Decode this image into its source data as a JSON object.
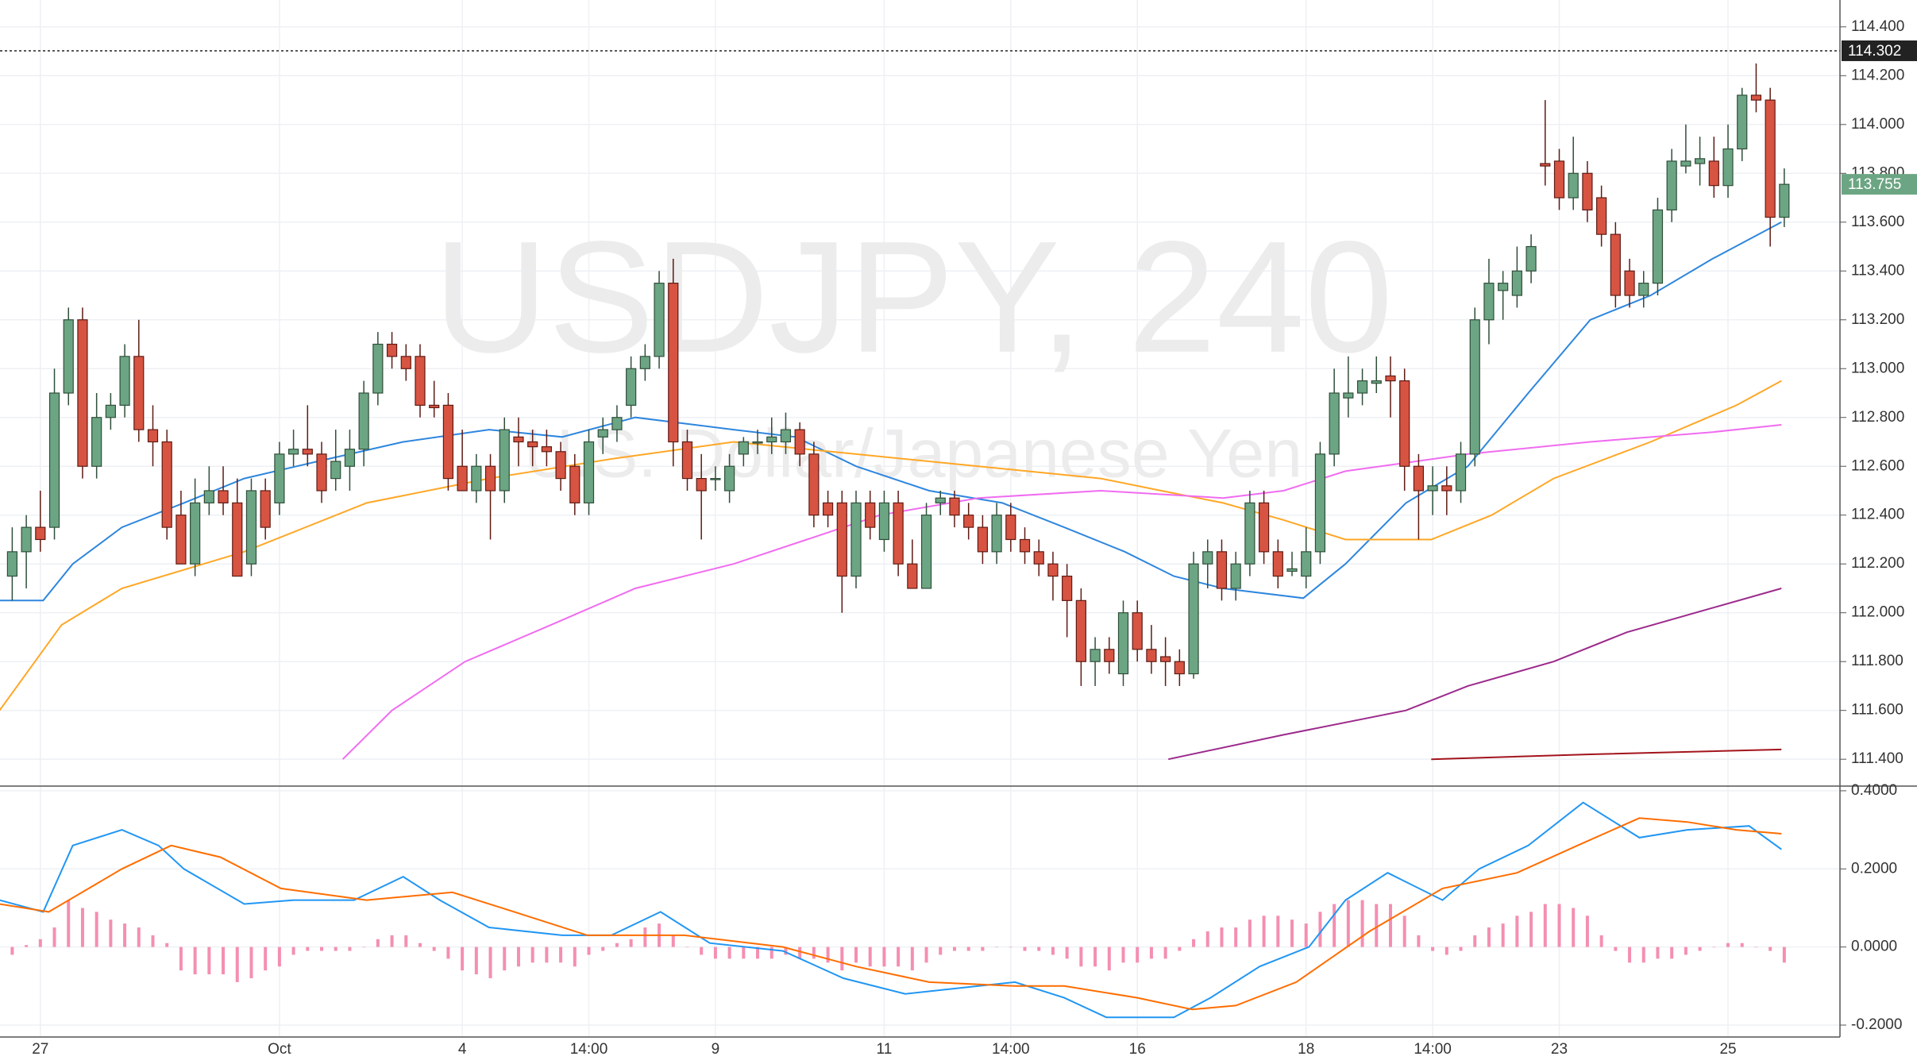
{
  "chart_data": [
    {
      "type": "candlestick",
      "title": "USDJPY, 240",
      "subtitle": "U.S. Dollar/Japanese Yen",
      "categories": [
        null,
        null,
        "27",
        null,
        null,
        null,
        null,
        null,
        null,
        null,
        null,
        null,
        null,
        null,
        null,
        null,
        null,
        null,
        null,
        "Oct",
        null,
        null,
        null,
        null,
        null,
        null,
        null,
        null,
        null,
        null,
        null,
        null,
        "4",
        null,
        null,
        null,
        null,
        null,
        null,
        null,
        null,
        "14:00",
        null,
        null,
        null,
        null,
        null,
        null,
        null,
        null,
        "9",
        null,
        null,
        null,
        null,
        null,
        null,
        null,
        null,
        null,
        null,
        null,
        "11",
        null,
        null,
        null,
        null,
        null,
        null,
        null,
        null,
        "14:00",
        null,
        null,
        null,
        null,
        null,
        null,
        null,
        null,
        "16",
        null,
        null,
        null,
        null,
        null,
        null,
        null,
        null,
        null,
        null,
        null,
        "18",
        null,
        null,
        null,
        null,
        null,
        null,
        null,
        null,
        "14:00",
        null,
        null,
        null,
        null,
        null,
        null,
        null,
        null,
        "23",
        null,
        null,
        null,
        null,
        null,
        null,
        null,
        null,
        null,
        null,
        null,
        "25",
        null,
        null,
        null,
        null
      ],
      "open": [
        112.15,
        112.25,
        112.35,
        112.35,
        112.9,
        113.2,
        112.6,
        112.8,
        112.85,
        113.05,
        112.75,
        112.7,
        112.4,
        112.2,
        112.45,
        112.5,
        112.45,
        112.2,
        112.5,
        112.45,
        112.65,
        112.67,
        112.65,
        112.55,
        112.6,
        112.67,
        112.9,
        113.1,
        113.05,
        113.05,
        112.85,
        112.85,
        112.6,
        112.5,
        112.6,
        112.5,
        112.72,
        112.7,
        112.68,
        112.66,
        112.6,
        112.45,
        112.72,
        112.75,
        112.85,
        113.0,
        113.05,
        113.35,
        112.7,
        112.55,
        112.55,
        112.5,
        112.65,
        112.7,
        112.7,
        112.7,
        112.75,
        112.65,
        112.45,
        112.45,
        112.15,
        112.45,
        112.3,
        112.45,
        112.2,
        112.1,
        112.45,
        112.47,
        112.4,
        112.35,
        112.25,
        112.4,
        112.3,
        112.25,
        112.2,
        112.15,
        112.05,
        111.8,
        111.85,
        111.75,
        112.0,
        111.85,
        111.82,
        111.8,
        111.75,
        112.2,
        112.25,
        112.1,
        112.2,
        112.45,
        112.25,
        112.17,
        112.15,
        112.25,
        112.65,
        112.88,
        112.9,
        112.94,
        112.97,
        112.95,
        112.6,
        112.5,
        112.52,
        112.5,
        112.65,
        113.2,
        113.32,
        113.3,
        113.4,
        113.84,
        113.85,
        113.7,
        113.8,
        113.7,
        113.55,
        113.4,
        113.3,
        113.35,
        113.65,
        113.83,
        113.84,
        113.85,
        113.75,
        113.9,
        114.12,
        114.1,
        113.62
      ],
      "high": [
        112.35,
        112.4,
        112.5,
        113.0,
        113.25,
        113.25,
        112.9,
        112.9,
        113.1,
        113.2,
        112.85,
        112.75,
        112.5,
        112.55,
        112.6,
        112.6,
        112.55,
        112.55,
        112.55,
        112.7,
        112.75,
        112.85,
        112.7,
        112.75,
        112.75,
        112.95,
        113.15,
        113.15,
        113.1,
        113.1,
        112.95,
        112.9,
        112.75,
        112.65,
        112.65,
        112.8,
        112.8,
        112.75,
        112.75,
        112.7,
        112.65,
        112.75,
        112.8,
        112.85,
        113.05,
        113.1,
        113.4,
        113.45,
        112.75,
        112.65,
        112.6,
        112.65,
        112.72,
        112.75,
        112.8,
        112.82,
        112.78,
        112.7,
        112.5,
        112.5,
        112.5,
        112.5,
        112.5,
        112.5,
        112.3,
        112.45,
        112.5,
        112.5,
        112.45,
        112.4,
        112.45,
        112.45,
        112.35,
        112.3,
        112.25,
        112.2,
        112.1,
        111.9,
        111.9,
        112.05,
        112.05,
        111.95,
        111.9,
        111.85,
        112.25,
        112.3,
        112.3,
        112.25,
        112.5,
        112.5,
        112.3,
        112.25,
        112.35,
        112.7,
        113.0,
        113.05,
        113.0,
        113.05,
        113.05,
        113.0,
        112.65,
        112.6,
        112.6,
        112.7,
        113.25,
        113.45,
        113.4,
        113.5,
        113.55,
        114.1,
        113.9,
        113.95,
        113.85,
        113.75,
        113.6,
        113.45,
        113.4,
        113.7,
        113.9,
        114.0,
        113.95,
        113.95,
        114.0,
        114.15,
        114.25,
        114.15,
        113.82
      ],
      "low": [
        112.05,
        112.1,
        112.25,
        112.3,
        112.85,
        112.55,
        112.55,
        112.75,
        112.8,
        112.7,
        112.6,
        112.3,
        112.2,
        112.15,
        112.4,
        112.4,
        112.15,
        112.15,
        112.3,
        112.4,
        112.6,
        112.6,
        112.45,
        112.5,
        112.5,
        112.6,
        112.85,
        113.0,
        112.95,
        112.8,
        112.8,
        112.5,
        112.5,
        112.45,
        112.3,
        112.45,
        112.6,
        112.6,
        112.6,
        112.5,
        112.4,
        112.4,
        112.65,
        112.7,
        112.8,
        112.95,
        113.0,
        112.6,
        112.5,
        112.3,
        112.5,
        112.45,
        112.6,
        112.65,
        112.65,
        112.65,
        112.6,
        112.35,
        112.35,
        112.0,
        112.1,
        112.3,
        112.25,
        112.15,
        112.1,
        112.1,
        112.4,
        112.35,
        112.3,
        112.2,
        112.2,
        112.25,
        112.2,
        112.15,
        112.05,
        111.9,
        111.7,
        111.7,
        111.75,
        111.7,
        111.8,
        111.75,
        111.7,
        111.7,
        111.73,
        112.1,
        112.05,
        112.05,
        112.15,
        112.2,
        112.1,
        112.15,
        112.1,
        112.2,
        112.6,
        112.8,
        112.85,
        112.9,
        112.8,
        112.5,
        112.3,
        112.4,
        112.4,
        112.45,
        112.6,
        113.1,
        113.2,
        113.25,
        113.35,
        113.75,
        113.65,
        113.65,
        113.6,
        113.5,
        113.25,
        113.25,
        113.25,
        113.3,
        113.6,
        113.8,
        113.75,
        113.7,
        113.7,
        113.85,
        114.05,
        113.5,
        113.58
      ],
      "close": [
        112.25,
        112.35,
        112.3,
        112.9,
        113.2,
        112.6,
        112.8,
        112.85,
        113.05,
        112.75,
        112.7,
        112.35,
        112.2,
        112.45,
        112.5,
        112.45,
        112.15,
        112.5,
        112.35,
        112.65,
        112.67,
        112.65,
        112.5,
        112.62,
        112.67,
        112.9,
        113.1,
        113.05,
        113.0,
        112.85,
        112.84,
        112.55,
        112.5,
        112.6,
        112.5,
        112.75,
        112.7,
        112.68,
        112.66,
        112.55,
        112.45,
        112.7,
        112.75,
        112.8,
        113.0,
        113.05,
        113.35,
        112.7,
        112.55,
        112.5,
        112.55,
        112.6,
        112.7,
        112.7,
        112.72,
        112.75,
        112.65,
        112.4,
        112.4,
        112.15,
        112.45,
        112.35,
        112.45,
        112.2,
        112.1,
        112.4,
        112.47,
        112.4,
        112.35,
        112.25,
        112.4,
        112.3,
        112.25,
        112.2,
        112.15,
        112.05,
        111.8,
        111.85,
        111.8,
        112.0,
        111.85,
        111.8,
        111.8,
        111.75,
        112.2,
        112.25,
        112.1,
        112.2,
        112.45,
        112.25,
        112.15,
        112.18,
        112.25,
        112.65,
        112.9,
        112.9,
        112.95,
        112.95,
        112.95,
        112.6,
        112.5,
        112.52,
        112.5,
        112.65,
        113.2,
        113.35,
        113.35,
        113.4,
        113.5,
        113.83,
        113.7,
        113.8,
        113.65,
        113.55,
        113.3,
        113.3,
        113.35,
        113.65,
        113.85,
        113.85,
        113.86,
        113.75,
        113.9,
        114.12,
        114.1,
        113.62,
        113.755
      ],
      "up_color": "#6ca583",
      "down_color": "#d75442",
      "lines": [
        {
          "color": "#2e86de",
          "x": [
            -0.9,
            2.2,
            4.3,
            7.8,
            12.2,
            16.5,
            21.7,
            27.8,
            33.9,
            39.1,
            44.3,
            51.3,
            55.7,
            60,
            65.2,
            70.4,
            74.8,
            79.1,
            82.6,
            86.1,
            91.8,
            94.8,
            99.1,
            103.5,
            107.8,
            112.2,
            116.5,
            120.9,
            125.8
          ],
          "values": [
            112.05,
            112.05,
            112.2,
            112.35,
            112.45,
            112.55,
            112.62,
            112.7,
            112.75,
            112.72,
            112.8,
            112.75,
            112.72,
            112.6,
            112.5,
            112.45,
            112.35,
            112.25,
            112.15,
            112.1,
            112.06,
            112.2,
            112.45,
            112.6,
            112.9,
            113.2,
            113.3,
            113.45,
            113.6
          ]
        },
        {
          "color": "#ffa726",
          "x": [
            -0.9,
            3.5,
            7.8,
            16.5,
            25.2,
            33.9,
            42.6,
            51.3,
            60,
            68.7,
            77.4,
            81.7,
            86.1,
            90.4,
            94.8,
            100.9,
            105.2,
            109.6,
            116.5,
            122.6,
            125.8
          ],
          "values": [
            111.6,
            111.95,
            112.1,
            112.25,
            112.45,
            112.55,
            112.63,
            112.7,
            112.65,
            112.6,
            112.55,
            112.5,
            112.45,
            112.38,
            112.3,
            112.3,
            112.4,
            112.55,
            112.7,
            112.85,
            112.95
          ]
        },
        {
          "color": "#f06cf0",
          "x": [
            23.5,
            27,
            32.2,
            38.3,
            44.3,
            51.3,
            56.5,
            61.7,
            68.7,
            77.4,
            86.1,
            90.4,
            94.8,
            103.5,
            112.2,
            120.9,
            125.8
          ],
          "values": [
            111.4,
            111.6,
            111.8,
            111.95,
            112.1,
            112.2,
            112.3,
            112.4,
            112.47,
            112.5,
            112.47,
            112.5,
            112.58,
            112.65,
            112.7,
            112.74,
            112.77
          ]
        },
        {
          "color": "#9c2a8c",
          "x": [
            82.2,
            90.4,
            99.1,
            103.5,
            109.6,
            114.8,
            120.9,
            125.8
          ],
          "values": [
            111.4,
            111.5,
            111.6,
            111.7,
            111.8,
            111.92,
            112.02,
            112.1
          ]
        },
        {
          "color": "#a3141c",
          "x": [
            100.9,
            112.2,
            125.8
          ],
          "values": [
            111.4,
            111.42,
            111.44
          ]
        }
      ],
      "price_lines": [
        {
          "value": 114.302,
          "color": "#222222"
        },
        {
          "value": 113.755,
          "color": "#6ca583"
        }
      ],
      "ylim": [
        111.29,
        114.51
      ],
      "yticks": [
        {
          "value": 111.4,
          "label": "111.400"
        },
        {
          "value": 111.6,
          "label": "111.600"
        },
        {
          "value": 111.8,
          "label": "111.800"
        },
        {
          "value": 112.0,
          "label": "112.000"
        },
        {
          "value": 112.2,
          "label": "112.200"
        },
        {
          "value": 112.4,
          "label": "112.400"
        },
        {
          "value": 112.6,
          "label": "112.600"
        },
        {
          "value": 112.8,
          "label": "112.800"
        },
        {
          "value": 113.0,
          "label": "113.000"
        },
        {
          "value": 113.2,
          "label": "113.200"
        },
        {
          "value": 113.4,
          "label": "113.400"
        },
        {
          "value": 113.6,
          "label": "113.600"
        },
        {
          "value": 113.8,
          "label": "113.800"
        },
        {
          "value": 114.0,
          "label": "114.000"
        },
        {
          "value": 114.2,
          "label": "114.200"
        },
        {
          "value": 114.4,
          "label": "114.400"
        }
      ],
      "grid": true
    },
    {
      "type": "macd",
      "histogram": [
        -0.02,
        0.005,
        0.02,
        0.05,
        0.12,
        0.1,
        0.09,
        0.07,
        0.06,
        0.05,
        0.03,
        0.01,
        -0.06,
        -0.07,
        -0.07,
        -0.07,
        -0.09,
        -0.08,
        -0.06,
        -0.05,
        -0.02,
        -0.01,
        -0.01,
        -0.01,
        -0.01,
        0.0,
        0.02,
        0.03,
        0.03,
        0.01,
        -0.01,
        -0.03,
        -0.06,
        -0.07,
        -0.08,
        -0.06,
        -0.05,
        -0.04,
        -0.04,
        -0.04,
        -0.05,
        -0.02,
        -0.01,
        0.01,
        0.02,
        0.05,
        0.06,
        0.03,
        0.0,
        -0.02,
        -0.03,
        -0.03,
        -0.03,
        -0.03,
        -0.03,
        -0.02,
        -0.03,
        -0.03,
        -0.04,
        -0.06,
        -0.04,
        -0.05,
        -0.05,
        -0.05,
        -0.06,
        -0.04,
        -0.02,
        -0.01,
        -0.01,
        -0.01,
        0.0,
        0.0,
        -0.01,
        -0.01,
        -0.02,
        -0.03,
        -0.05,
        -0.05,
        -0.06,
        -0.04,
        -0.04,
        -0.03,
        -0.03,
        -0.01,
        0.02,
        0.04,
        0.05,
        0.05,
        0.07,
        0.08,
        0.08,
        0.07,
        0.06,
        0.09,
        0.11,
        0.12,
        0.12,
        0.11,
        0.11,
        0.08,
        0.03,
        -0.01,
        -0.02,
        -0.01,
        0.03,
        0.05,
        0.06,
        0.08,
        0.09,
        0.11,
        0.11,
        0.1,
        0.08,
        0.03,
        -0.01,
        -0.04,
        -0.04,
        -0.03,
        -0.03,
        -0.02,
        -0.01,
        0.0,
        0.01,
        0.01,
        0.0,
        -0.01,
        -0.04
      ],
      "histogram_color": "#f48fb1",
      "lines": [
        {
          "color": "#2196f3",
          "x": [
            -0.9,
            2.2,
            4.3,
            7.8,
            10.4,
            12.2,
            16.5,
            20,
            24.3,
            27.8,
            30.4,
            33.9,
            39.1,
            42.6,
            46.1,
            49.6,
            54.8,
            59.1,
            63.5,
            68.7,
            71.3,
            74.8,
            77.8,
            82.6,
            85.2,
            88.7,
            92.2,
            94.8,
            97.8,
            101.7,
            104.3,
            107.8,
            111.7,
            115.7,
            119.1,
            123.5,
            125.8
          ],
          "values": [
            0.12,
            0.09,
            0.26,
            0.3,
            0.26,
            0.2,
            0.11,
            0.12,
            0.12,
            0.18,
            0.12,
            0.05,
            0.03,
            0.03,
            0.09,
            0.01,
            -0.01,
            -0.08,
            -0.12,
            -0.1,
            -0.09,
            -0.13,
            -0.18,
            -0.18,
            -0.13,
            -0.05,
            0.0,
            0.12,
            0.19,
            0.12,
            0.2,
            0.26,
            0.37,
            0.28,
            0.3,
            0.31,
            0.25
          ]
        },
        {
          "color": "#ff6d00",
          "x": [
            -0.9,
            2.6,
            7.8,
            11.3,
            14.8,
            19.1,
            25.2,
            31.3,
            35.7,
            40.9,
            47.8,
            54.8,
            60,
            65.2,
            71.3,
            74.8,
            80,
            83.9,
            87,
            91.3,
            96.5,
            101.7,
            107,
            111.3,
            115.7,
            119.1,
            122.6,
            125.8
          ],
          "values": [
            0.11,
            0.09,
            0.2,
            0.26,
            0.23,
            0.15,
            0.12,
            0.14,
            0.09,
            0.03,
            0.03,
            0.0,
            -0.05,
            -0.09,
            -0.1,
            -0.1,
            -0.13,
            -0.16,
            -0.15,
            -0.09,
            0.04,
            0.15,
            0.19,
            0.26,
            0.33,
            0.32,
            0.3,
            0.29
          ]
        }
      ],
      "ylim": [
        -0.2305,
        0.412
      ],
      "yticks": [
        {
          "value": -0.2,
          "label": "-0.2000"
        },
        {
          "value": 0.0,
          "label": "0.0000"
        },
        {
          "value": 0.2,
          "label": "0.2000"
        },
        {
          "value": 0.4,
          "label": "0.4000"
        }
      ],
      "grid": true
    }
  ]
}
